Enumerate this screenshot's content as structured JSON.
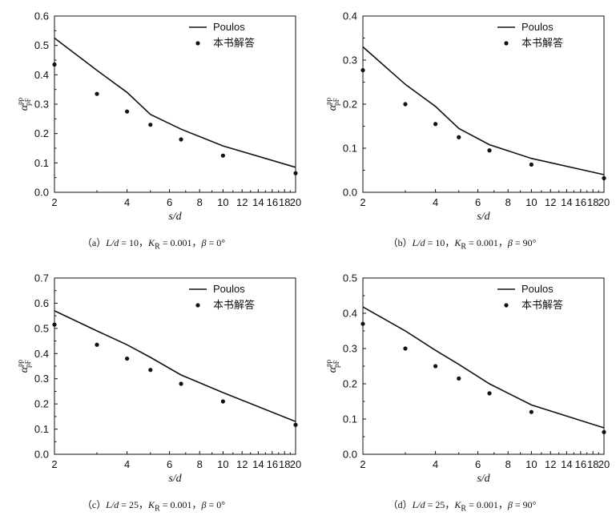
{
  "charts": [
    {
      "caption": {
        "prefix": "（a）",
        "ld_label": "L/d",
        "ld_value": " = 10，",
        "kr_label": "K",
        "kr_sub": "R",
        "kr_value": " = 0.001，",
        "beta_label": "β",
        "beta_value": " = 0°"
      },
      "chart_data": {
        "type": "line",
        "xlabel": "s/d",
        "ylabel": "α",
        "ylabel_sup": "pp",
        "ylabel_sub": "pF",
        "xscale": "log",
        "xlim": [
          2,
          20
        ],
        "ylim": [
          0,
          0.6
        ],
        "xticks": [
          2,
          4,
          6,
          8,
          10,
          12,
          14,
          16,
          18,
          20
        ],
        "yticks": [
          0.0,
          0.1,
          0.2,
          0.3,
          0.4,
          0.5,
          0.6
        ],
        "legend_position": "top-right",
        "series": [
          {
            "name": "Poulos",
            "kind": "line",
            "x": [
              2,
              3,
              4,
              5,
              6.7,
              10,
              20
            ],
            "y": [
              0.525,
              0.415,
              0.34,
              0.265,
              0.215,
              0.158,
              0.085
            ]
          },
          {
            "name": "本书解答",
            "kind": "scatter",
            "x": [
              2,
              3,
              4,
              5,
              6.7,
              10,
              20
            ],
            "y": [
              0.435,
              0.335,
              0.275,
              0.23,
              0.18,
              0.125,
              0.065
            ]
          }
        ]
      }
    },
    {
      "caption": {
        "prefix": "（b）",
        "ld_label": "L/d",
        "ld_value": " = 10，",
        "kr_label": "K",
        "kr_sub": "R",
        "kr_value": " = 0.001，",
        "beta_label": "β",
        "beta_value": " = 90°"
      },
      "chart_data": {
        "type": "line",
        "xlabel": "s/d",
        "ylabel": "α",
        "ylabel_sup": "pp",
        "ylabel_sub": "pF",
        "xscale": "log",
        "xlim": [
          2,
          20
        ],
        "ylim": [
          0,
          0.4
        ],
        "xticks": [
          2,
          4,
          6,
          8,
          10,
          12,
          14,
          16,
          18,
          20
        ],
        "yticks": [
          0.0,
          0.1,
          0.2,
          0.3,
          0.4
        ],
        "legend_position": "top-right",
        "series": [
          {
            "name": "Poulos",
            "kind": "line",
            "x": [
              2,
              3,
              4,
              5,
              6.7,
              10,
              20
            ],
            "y": [
              0.33,
              0.245,
              0.195,
              0.145,
              0.108,
              0.077,
              0.04
            ]
          },
          {
            "name": "本书解答",
            "kind": "scatter",
            "x": [
              2,
              3,
              4,
              5,
              6.7,
              10,
              20
            ],
            "y": [
              0.277,
              0.2,
              0.155,
              0.125,
              0.095,
              0.063,
              0.032
            ]
          }
        ]
      }
    },
    {
      "caption": {
        "prefix": "（c）",
        "ld_label": "L/d",
        "ld_value": " = 25，",
        "kr_label": "K",
        "kr_sub": "R",
        "kr_value": " = 0.001，",
        "beta_label": "β",
        "beta_value": " = 0°"
      },
      "chart_data": {
        "type": "line",
        "xlabel": "s/d",
        "ylabel": "α",
        "ylabel_sup": "pp",
        "ylabel_sub": "pF",
        "xscale": "log",
        "xlim": [
          2,
          20
        ],
        "ylim": [
          0,
          0.7
        ],
        "xticks": [
          2,
          4,
          6,
          8,
          10,
          12,
          14,
          16,
          18,
          20
        ],
        "yticks": [
          0.0,
          0.1,
          0.2,
          0.3,
          0.4,
          0.5,
          0.6,
          0.7
        ],
        "legend_position": "top-right",
        "series": [
          {
            "name": "Poulos",
            "kind": "line",
            "x": [
              2,
              3,
              4,
              5,
              6.7,
              10,
              20
            ],
            "y": [
              0.57,
              0.49,
              0.435,
              0.385,
              0.315,
              0.245,
              0.13
            ]
          },
          {
            "name": "本书解答",
            "kind": "scatter",
            "x": [
              2,
              3,
              4,
              5,
              6.7,
              10,
              20
            ],
            "y": [
              0.515,
              0.435,
              0.38,
              0.335,
              0.28,
              0.21,
              0.117
            ]
          }
        ]
      }
    },
    {
      "caption": {
        "prefix": "（d）",
        "ld_label": "L/d",
        "ld_value": " = 25，",
        "kr_label": "K",
        "kr_sub": "R",
        "kr_value": " = 0.001，",
        "beta_label": "β",
        "beta_value": " = 90°"
      },
      "chart_data": {
        "type": "line",
        "xlabel": "s/d",
        "ylabel": "α",
        "ylabel_sup": "pp",
        "ylabel_sub": "pF",
        "xscale": "log",
        "xlim": [
          2,
          20
        ],
        "ylim": [
          0,
          0.5
        ],
        "xticks": [
          2,
          4,
          6,
          8,
          10,
          12,
          14,
          16,
          18,
          20
        ],
        "yticks": [
          0.0,
          0.1,
          0.2,
          0.3,
          0.4,
          0.5
        ],
        "legend_position": "top-right",
        "series": [
          {
            "name": "Poulos",
            "kind": "line",
            "x": [
              2,
              3,
              4,
              5,
              6.7,
              10,
              20
            ],
            "y": [
              0.418,
              0.35,
              0.295,
              0.255,
              0.2,
              0.14,
              0.075
            ]
          },
          {
            "name": "本书解答",
            "kind": "scatter",
            "x": [
              2,
              3,
              4,
              5,
              6.7,
              10,
              20
            ],
            "y": [
              0.37,
              0.3,
              0.25,
              0.215,
              0.173,
              0.12,
              0.063
            ]
          }
        ]
      }
    }
  ]
}
